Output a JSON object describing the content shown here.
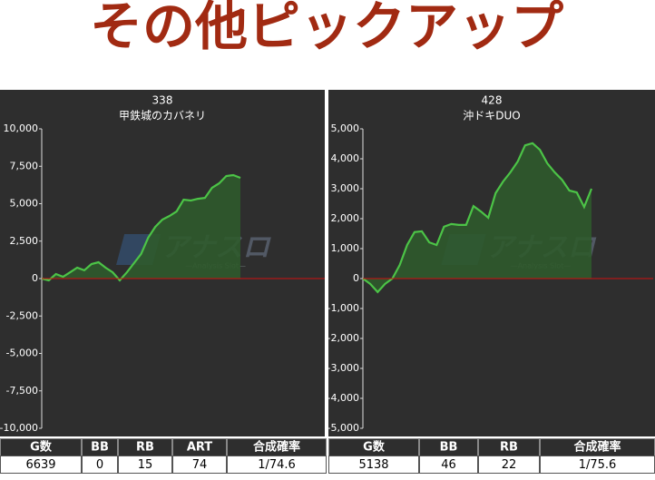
{
  "header": {
    "title": "その他ピックアップ"
  },
  "chart_data": [
    {
      "type": "area",
      "title": "338",
      "subtitle": "甲鉄城のカバネリ",
      "color": "#4cc447",
      "fill": "#2f5a2c",
      "zero_line_color": "#d01010",
      "watermark": "アナスロ",
      "watermark_sub": "—Analysis Slot—",
      "values": [
        0,
        -120,
        300,
        120,
        420,
        730,
        550,
        970,
        1090,
        730,
        420,
        -120,
        420,
        1030,
        1640,
        2730,
        3450,
        3940,
        4180,
        4480,
        5270,
        5210,
        5330,
        5390,
        6060,
        6360,
        6850,
        6910,
        6730
      ],
      "ylim": [
        -10000,
        10000
      ],
      "yticks": [
        {
          "value": 10000,
          "label": "10,000"
        },
        {
          "value": 7500,
          "label": "7,500"
        },
        {
          "value": 5000,
          "label": "5,000"
        },
        {
          "value": 2500,
          "label": "2,500"
        },
        0,
        {
          "value": -2500,
          "label": "-2,500"
        },
        {
          "value": -5000,
          "label": "-5,000"
        },
        {
          "value": -7500,
          "label": "-7,500"
        },
        {
          "value": -10000,
          "label": "-10,000"
        }
      ]
    },
    {
      "type": "area",
      "title": "428",
      "subtitle": "沖ドキDUO",
      "color": "#4cc447",
      "fill": "#2f5a2c",
      "zero_line_color": "#d01010",
      "watermark": "アナスロ",
      "watermark_sub": "—Analysis Slot—",
      "values": [
        0,
        -180,
        -450,
        -180,
        0,
        450,
        1120,
        1550,
        1580,
        1210,
        1120,
        1730,
        1820,
        1790,
        1790,
        2420,
        2240,
        2030,
        2850,
        3240,
        3550,
        3910,
        4450,
        4520,
        4300,
        3850,
        3550,
        3300,
        2940,
        2880,
        2390,
        3000
      ],
      "ylim": [
        -5000,
        5000
      ],
      "yticks": [
        {
          "value": 5000,
          "label": "5,000"
        },
        {
          "value": 4000,
          "label": "4,000"
        },
        {
          "value": 3000,
          "label": "3,000"
        },
        {
          "value": 2000,
          "label": "2,000"
        },
        {
          "value": 1000,
          "label": "1,000"
        },
        0,
        {
          "value": -1000,
          "label": "-1,000"
        },
        {
          "value": -2000,
          "label": "-2,000"
        },
        {
          "value": -3000,
          "label": "-3,000"
        },
        {
          "value": -4000,
          "label": "-4,000"
        },
        {
          "value": -5000,
          "label": "-5,000"
        }
      ]
    }
  ],
  "tables": [
    {
      "columns": [
        "G数",
        "BB",
        "RB",
        "ART",
        "合成確率"
      ],
      "rows": [
        [
          6639,
          0,
          15,
          74,
          "1/74.6"
        ]
      ]
    },
    {
      "columns": [
        "G数",
        "BB",
        "RB",
        "合成確率"
      ],
      "rows": [
        [
          5138,
          46,
          22,
          "1/75.6"
        ]
      ]
    }
  ]
}
